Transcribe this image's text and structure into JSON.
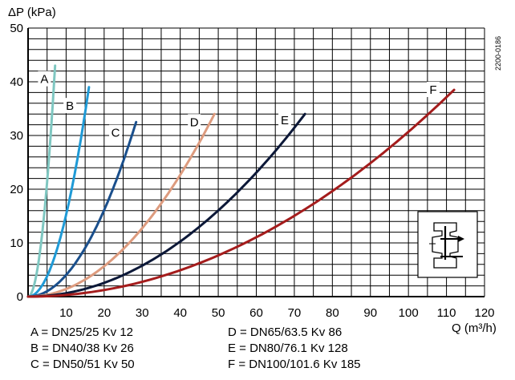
{
  "chart_data": {
    "type": "line",
    "ylabel": "ΔP (kPa)",
    "xlabel": "Q (m³/h)",
    "xlim": [
      0,
      120
    ],
    "ylim": [
      0,
      50
    ],
    "x_ticks": [
      "10",
      "20",
      "30",
      "40",
      "50",
      "60",
      "70",
      "80",
      "90",
      "100",
      "110",
      "120"
    ],
    "y_ticks": [
      "0",
      "10",
      "20",
      "30",
      "40",
      "50"
    ],
    "grid": true,
    "code": "2200-0186",
    "icon": "valve-icon",
    "series": [
      {
        "name": "A",
        "kv": 12,
        "x_end": 7.1,
        "y_end": 43,
        "color": "#7fc7c1",
        "label_x": 4.3,
        "label_y": 40.5
      },
      {
        "name": "B",
        "kv": 26,
        "x_end": 16.0,
        "y_end": 39,
        "color": "#1f9ad6",
        "label_x": 11,
        "label_y": 35.5
      },
      {
        "name": "C",
        "kv": 50,
        "x_end": 28.4,
        "y_end": 32.5,
        "color": "#1a4f8c",
        "label_x": 23,
        "label_y": 30.5
      },
      {
        "name": "D",
        "kv": 86,
        "x_end": 49.0,
        "y_end": 34,
        "color": "#dd9b7e",
        "label_x": 43.7,
        "label_y": 32.5
      },
      {
        "name": "E",
        "kv": 128,
        "x_end": 72.8,
        "y_end": 34,
        "color": "#0c1838",
        "label_x": 67.5,
        "label_y": 32.8
      },
      {
        "name": "F",
        "kv": 185,
        "x_end": 112.0,
        "y_end": 38.5,
        "color": "#a41c1c",
        "label_x": 106.5,
        "label_y": 38.5
      }
    ]
  },
  "legend": [
    "A = DN25/25 Kv 12",
    "B = DN40/38 Kv 26",
    "C = DN50/51 Kv 50",
    "D = DN65/63.5 Kv 86",
    "E = DN80/76.1 Kv 128",
    "F = DN100/101.6 Kv 185"
  ]
}
